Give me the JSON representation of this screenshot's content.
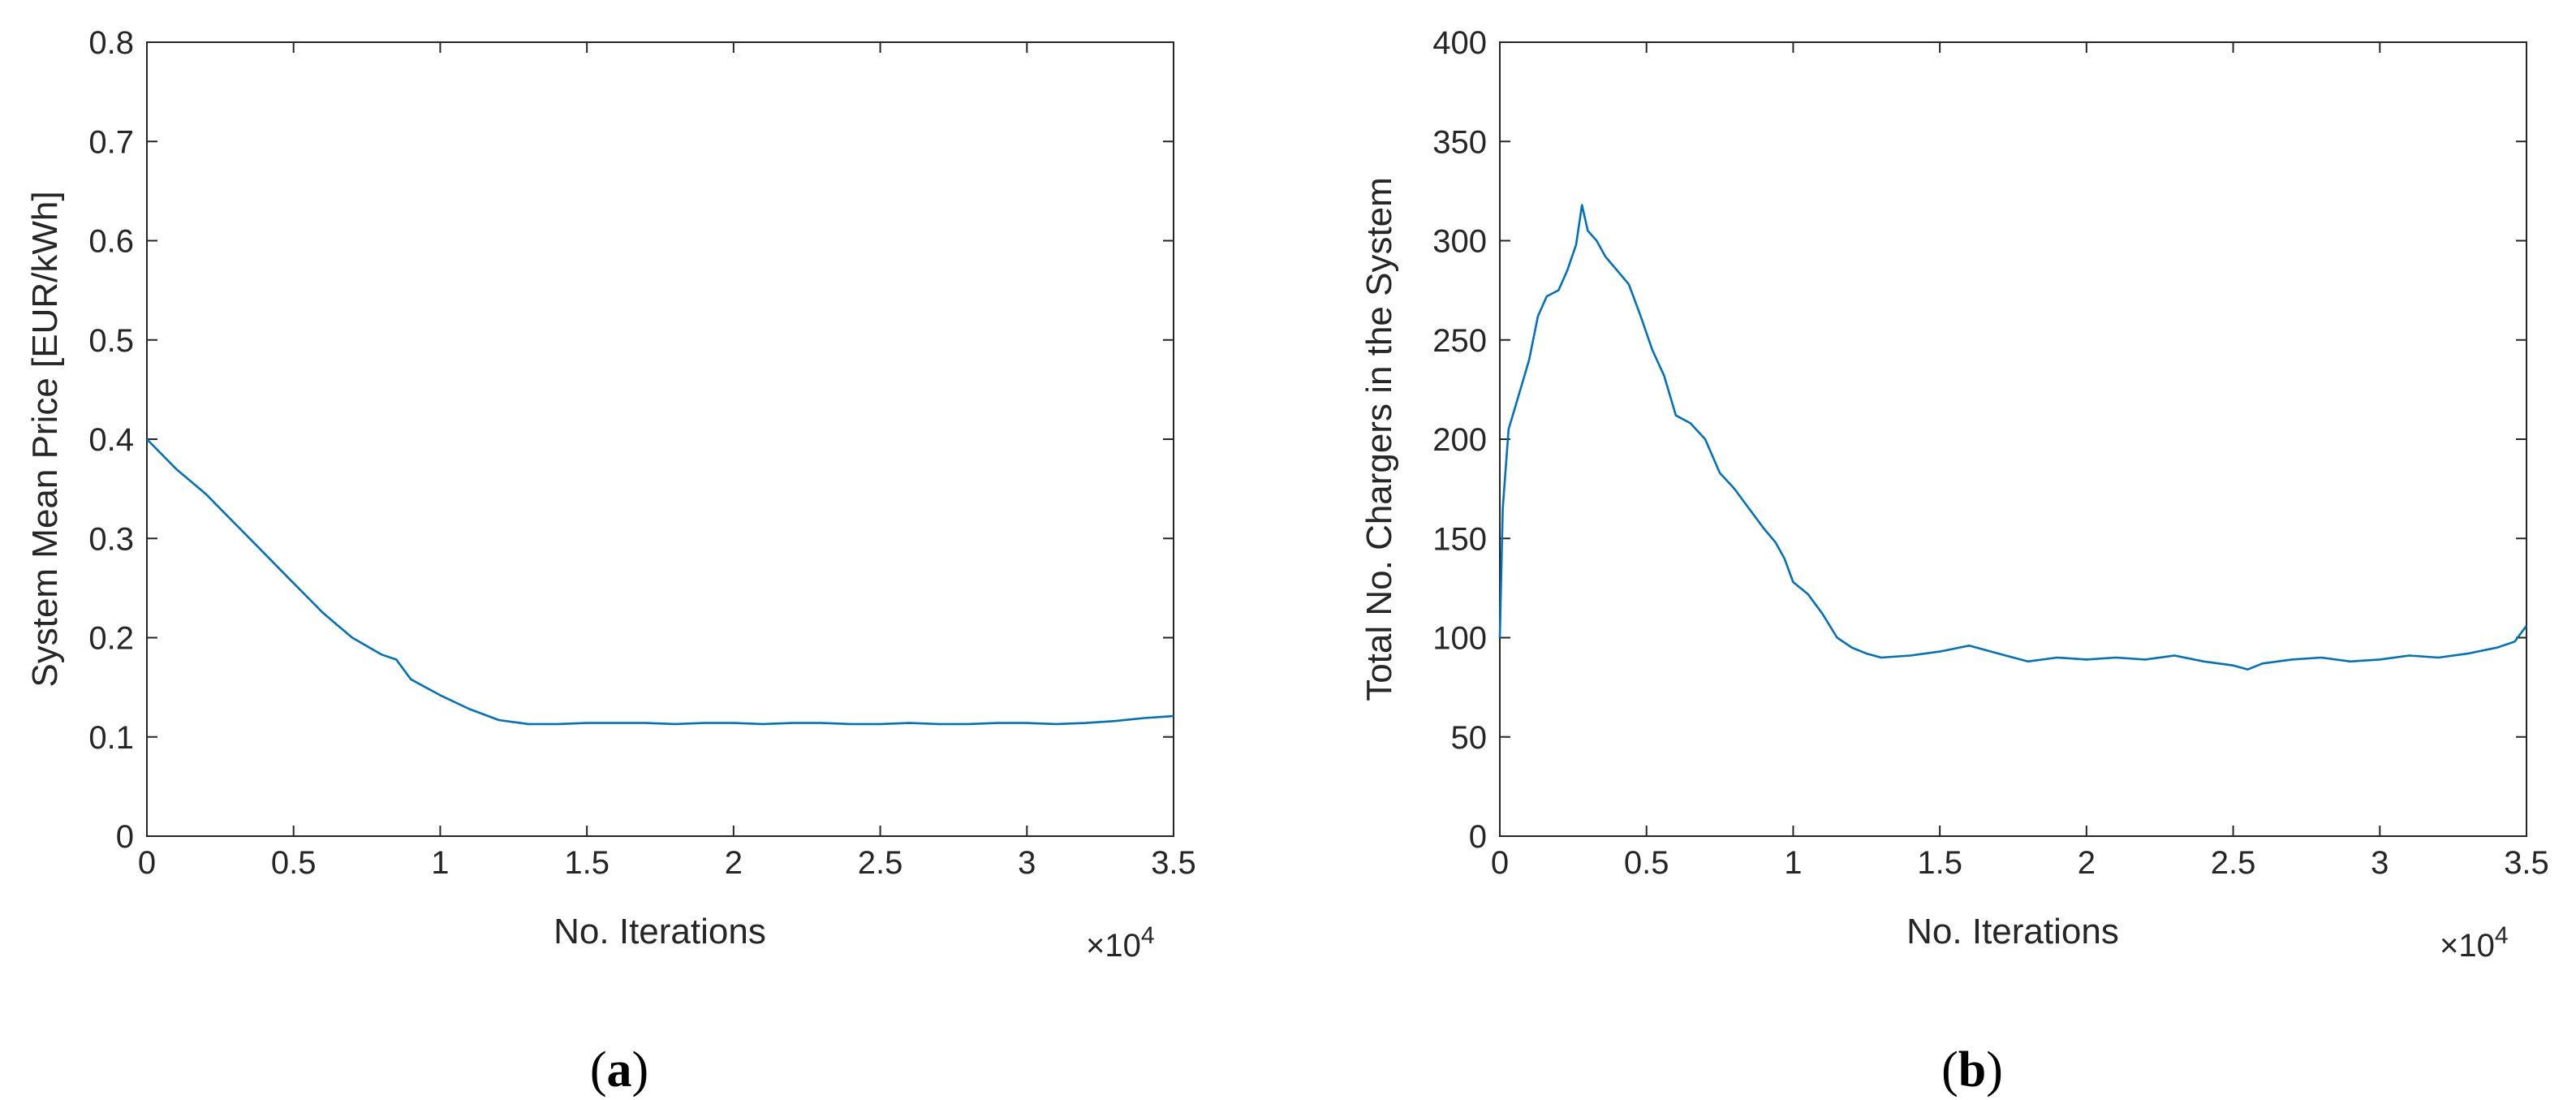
{
  "chart_data": [
    {
      "type": "line",
      "panel_label": "a",
      "xlabel": "No. Iterations",
      "ylabel": "System Mean Price [EUR/kWh]",
      "x_multiplier": "×10",
      "x_multiplier_exp": "4",
      "xlim": [
        0,
        35000
      ],
      "ylim": [
        0,
        0.8
      ],
      "xticks": [
        0,
        5000,
        10000,
        15000,
        20000,
        25000,
        30000,
        35000
      ],
      "xtick_labels": [
        "0",
        "0.5",
        "1",
        "1.5",
        "2",
        "2.5",
        "3",
        "3.5"
      ],
      "yticks": [
        0,
        0.1,
        0.2,
        0.3,
        0.4,
        0.5,
        0.6,
        0.7,
        0.8
      ],
      "ytick_labels": [
        "0",
        "0.1",
        "0.2",
        "0.3",
        "0.4",
        "0.5",
        "0.6",
        "0.7",
        "0.8"
      ],
      "grid": false,
      "color": "#0072BD",
      "series": [
        {
          "x": [
            0,
            1000,
            2000,
            3000,
            4000,
            5000,
            6000,
            7000,
            8000,
            8500,
            9000,
            10000,
            11000,
            12000,
            13000,
            14000,
            15000,
            16000,
            17000,
            18000,
            19000,
            20000,
            21000,
            22000,
            23000,
            24000,
            25000,
            26000,
            27000,
            28000,
            29000,
            30000,
            31000,
            32000,
            33000,
            34000,
            35000
          ],
          "y": [
            0.4,
            0.37,
            0.345,
            0.315,
            0.285,
            0.255,
            0.225,
            0.2,
            0.183,
            0.178,
            0.158,
            0.142,
            0.128,
            0.117,
            0.113,
            0.113,
            0.114,
            0.114,
            0.114,
            0.113,
            0.114,
            0.114,
            0.113,
            0.114,
            0.114,
            0.113,
            0.113,
            0.114,
            0.113,
            0.113,
            0.114,
            0.114,
            0.113,
            0.114,
            0.116,
            0.119,
            0.121
          ]
        }
      ]
    },
    {
      "type": "line",
      "panel_label": "b",
      "xlabel": "No. Iterations",
      "ylabel": "Total No. Chargers in the System",
      "x_multiplier": "×10",
      "x_multiplier_exp": "4",
      "xlim": [
        0,
        35000
      ],
      "ylim": [
        0,
        400
      ],
      "xticks": [
        0,
        5000,
        10000,
        15000,
        20000,
        25000,
        30000,
        35000
      ],
      "xtick_labels": [
        "0",
        "0.5",
        "1",
        "1.5",
        "2",
        "2.5",
        "3",
        "3.5"
      ],
      "yticks": [
        0,
        50,
        100,
        150,
        200,
        250,
        300,
        350,
        400
      ],
      "ytick_labels": [
        "0",
        "50",
        "100",
        "150",
        "200",
        "250",
        "300",
        "350",
        "400"
      ],
      "grid": false,
      "color": "#0072BD",
      "series": [
        {
          "x": [
            0,
            100,
            300,
            500,
            800,
            1000,
            1300,
            1600,
            2000,
            2300,
            2600,
            2800,
            3000,
            3300,
            3600,
            4000,
            4400,
            4800,
            5200,
            5600,
            6000,
            6500,
            7000,
            7500,
            8000,
            8500,
            9000,
            9400,
            9700,
            10000,
            10500,
            11000,
            11500,
            12000,
            12500,
            13000,
            14000,
            15000,
            16000,
            17000,
            18000,
            19000,
            20000,
            21000,
            22000,
            23000,
            24000,
            25000,
            25500,
            26000,
            27000,
            28000,
            29000,
            30000,
            31000,
            32000,
            33000,
            34000,
            34600,
            35000
          ],
          "y": [
            100,
            165,
            205,
            215,
            230,
            240,
            262,
            272,
            275,
            285,
            298,
            318,
            305,
            300,
            292,
            285,
            278,
            262,
            245,
            232,
            212,
            208,
            200,
            183,
            175,
            165,
            155,
            148,
            140,
            128,
            122,
            112,
            100,
            95,
            92,
            90,
            91,
            93,
            96,
            92,
            88,
            90,
            89,
            90,
            89,
            91,
            88,
            86,
            84,
            87,
            89,
            90,
            88,
            89,
            91,
            90,
            92,
            95,
            98,
            106
          ]
        }
      ]
    }
  ]
}
